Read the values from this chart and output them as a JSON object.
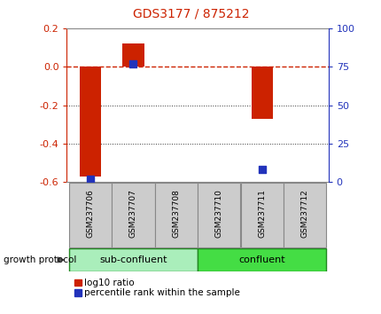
{
  "title": "GDS3177 / 875212",
  "samples": [
    "GSM237706",
    "GSM237707",
    "GSM237708",
    "GSM237710",
    "GSM237711",
    "GSM237712"
  ],
  "log10_ratio": [
    -0.57,
    0.12,
    0.0,
    0.0,
    -0.27,
    0.0
  ],
  "percentile_rank": [
    2,
    77,
    0,
    0,
    8,
    0
  ],
  "ylim_left": [
    -0.6,
    0.2
  ],
  "ylim_right": [
    0,
    100
  ],
  "yticks_left": [
    -0.6,
    -0.4,
    -0.2,
    0.0,
    0.2
  ],
  "yticks_right": [
    0,
    25,
    50,
    75,
    100
  ],
  "bar_color": "#cc2200",
  "dot_color": "#2233bb",
  "grid_color": "#333333",
  "dashed_color": "#cc2200",
  "background_color": "#ffffff",
  "group1_label": "sub-confluent",
  "group2_label": "confluent",
  "group1_samples": [
    0,
    1,
    2
  ],
  "group2_samples": [
    3,
    4,
    5
  ],
  "growth_protocol_label": "growth protocol",
  "legend_log10": "log10 ratio",
  "legend_pct": "percentile rank within the sample",
  "title_color": "#cc2200",
  "left_axis_color": "#cc2200",
  "right_axis_color": "#2233bb",
  "bar_width": 0.5,
  "dot_size": 30,
  "group1_color": "#aaeebb",
  "group2_color": "#44dd44",
  "sample_box_color": "#cccccc",
  "sample_box_edge": "#888888"
}
